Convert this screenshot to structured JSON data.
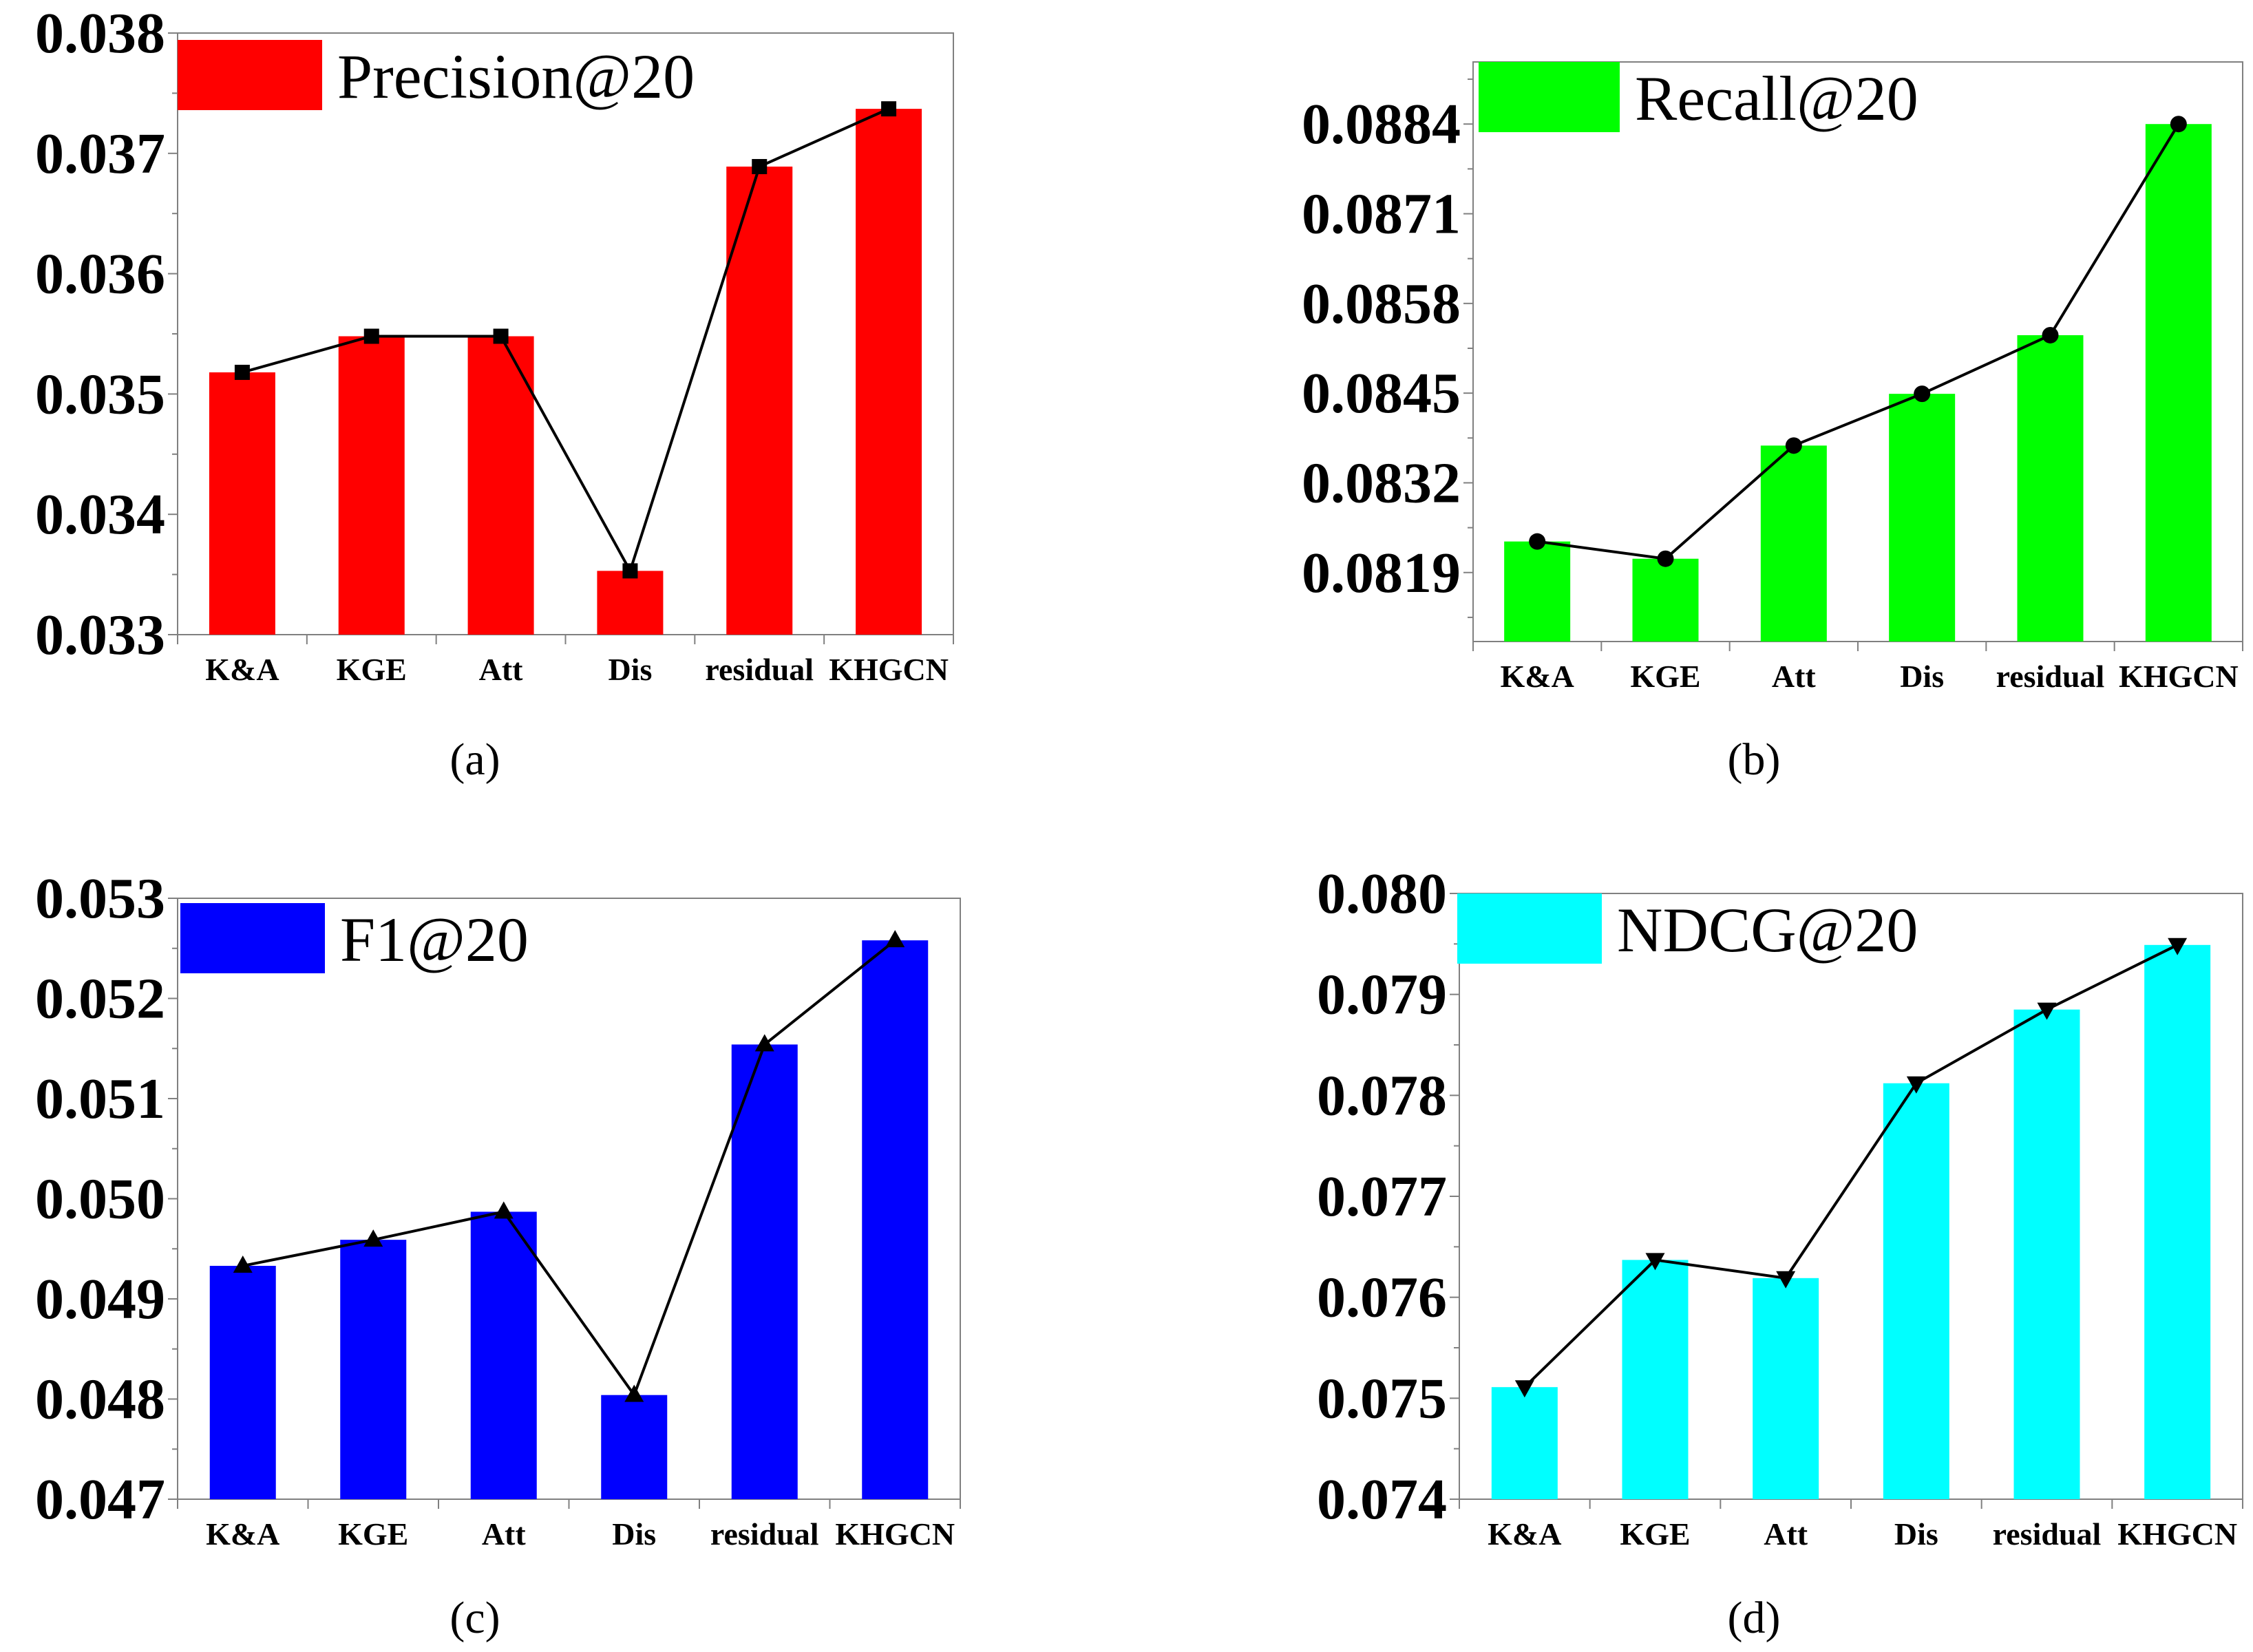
{
  "chart_data": [
    {
      "type": "bar",
      "panel_label": "(a)",
      "legend_label": "Precision@20",
      "color": "#ff0000",
      "marker": "square",
      "categories": [
        "K&A",
        "KGE",
        "Att",
        "Dis",
        "residual",
        "KHGCN"
      ],
      "values": [
        0.03518,
        0.03548,
        0.03548,
        0.03353,
        0.03689,
        0.03737
      ],
      "ylim": [
        0.033,
        0.038
      ],
      "yticks": [
        0.033,
        0.034,
        0.035,
        0.036,
        0.037,
        0.038
      ],
      "ytick_labels": [
        "0.033",
        "0.034",
        "0.035",
        "0.036",
        "0.037",
        "0.038"
      ]
    },
    {
      "type": "bar",
      "panel_label": "(b)",
      "legend_label": "Recall@20",
      "color": "#00ff00",
      "marker": "circle",
      "categories": [
        "K&A",
        "KGE",
        "Att",
        "Dis",
        "residual",
        "KHGCN"
      ],
      "values": [
        0.08235,
        0.0821,
        0.08374,
        0.08449,
        0.08534,
        0.0884
      ],
      "ylim": [
        0.0809,
        0.0893
      ],
      "yticks": [
        0.0819,
        0.0832,
        0.0845,
        0.0858,
        0.0871,
        0.0884
      ],
      "ytick_labels": [
        "0.0819",
        "0.0832",
        "0.0845",
        "0.0858",
        "0.0871",
        "0.0884"
      ]
    },
    {
      "type": "bar",
      "panel_label": "(c)",
      "legend_label": "F1@20",
      "color": "#0000ff",
      "marker": "triangle-up",
      "categories": [
        "K&A",
        "KGE",
        "Att",
        "Dis",
        "residual",
        "KHGCN"
      ],
      "values": [
        0.04933,
        0.04959,
        0.04987,
        0.04804,
        0.05154,
        0.05258
      ],
      "ylim": [
        0.047,
        0.053
      ],
      "yticks": [
        0.047,
        0.048,
        0.049,
        0.05,
        0.051,
        0.052,
        0.053
      ],
      "ytick_labels": [
        "0.047",
        "0.048",
        "0.049",
        "0.050",
        "0.051",
        "0.052",
        "0.053"
      ]
    },
    {
      "type": "bar",
      "panel_label": "(d)",
      "legend_label": "NDCG@20",
      "color": "#00ffff",
      "marker": "triangle-down",
      "categories": [
        "K&A",
        "KGE",
        "Att",
        "Dis",
        "residual",
        "KHGCN"
      ],
      "values": [
        0.07511,
        0.07637,
        0.07619,
        0.07812,
        0.07885,
        0.07949
      ],
      "ylim": [
        0.074,
        0.08
      ],
      "yticks": [
        0.074,
        0.075,
        0.076,
        0.077,
        0.078,
        0.079,
        0.08
      ],
      "ytick_labels": [
        "0.074",
        "0.075",
        "0.076",
        "0.077",
        "0.078",
        "0.079",
        "0.080"
      ]
    }
  ]
}
